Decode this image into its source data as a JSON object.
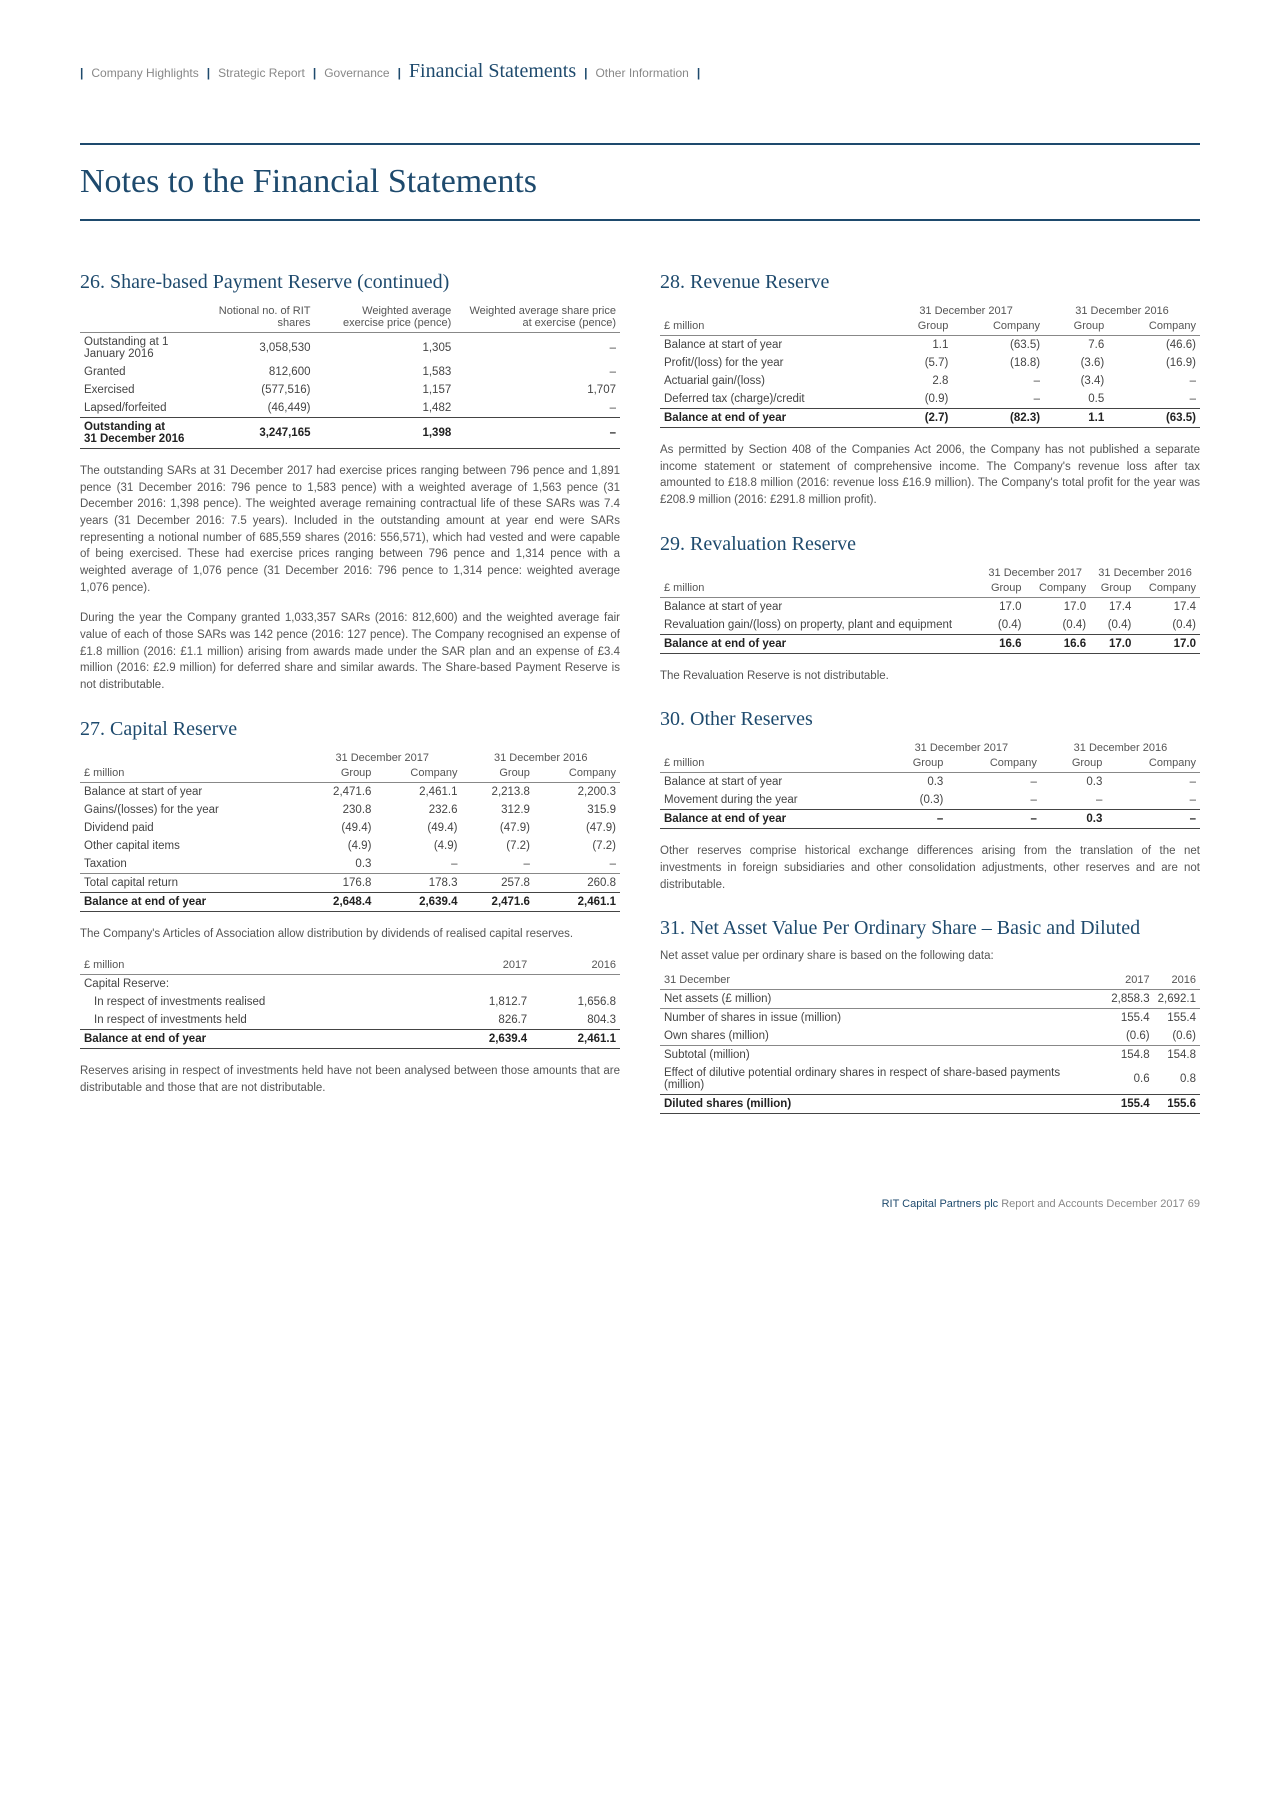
{
  "breadcrumb": {
    "items": [
      "Company Highlights",
      "Strategic Report",
      "Governance",
      "Financial Statements",
      "Other Information"
    ],
    "active_index": 3
  },
  "page_title": "Notes to the Financial Statements",
  "footer": {
    "company": "RIT Capital Partners plc",
    "label": "Report and Accounts December 2017",
    "page": "69"
  },
  "s26": {
    "title": "26. Share-based Payment Reserve (continued)",
    "headers": [
      "",
      "Notional no. of RIT shares",
      "Weighted average exercise price (pence)",
      "Weighted average share price at exercise (pence)"
    ],
    "rows": [
      [
        "Outstanding at 1 January 2016",
        "3,058,530",
        "1,305",
        "–"
      ],
      [
        "Granted",
        "812,600",
        "1,583",
        "–"
      ],
      [
        "Exercised",
        "(577,516)",
        "1,157",
        "1,707"
      ],
      [
        "Lapsed/forfeited",
        "(46,449)",
        "1,482",
        "–"
      ]
    ],
    "total": [
      "Outstanding at 31 December 2016",
      "3,247,165",
      "1,398",
      "–"
    ],
    "para1": "The outstanding SARs at 31 December 2017 had exercise prices ranging between 796 pence and 1,891 pence (31 December 2016: 796 pence to 1,583 pence) with a weighted average of 1,563 pence (31 December 2016: 1,398 pence). The weighted average remaining contractual life of these SARs was 7.4 years (31 December 2016: 7.5 years). Included in the outstanding amount at year end were SARs representing a notional number of 685,559 shares (2016: 556,571), which had vested and were capable of being exercised. These had exercise prices ranging between 796 pence and 1,314 pence with a weighted average of 1,076 pence (31 December 2016: 796 pence to 1,314 pence: weighted average 1,076 pence).",
    "para2": "During the year the Company granted 1,033,357 SARs (2016: 812,600) and the weighted average fair value of each of those SARs was 142 pence (2016: 127 pence). The Company recognised an expense of £1.8 million (2016: £1.1 million) arising from awards made under the SAR plan and an expense of £3.4 million (2016: £2.9 million) for deferred share and similar awards. The Share-based Payment Reserve is not distributable."
  },
  "s27": {
    "title": "27. Capital Reserve",
    "group_headers": [
      "",
      "31 December 2017",
      "31 December 2016"
    ],
    "sub_headers": [
      "£ million",
      "Group",
      "Company",
      "Group",
      "Company"
    ],
    "rows": [
      [
        "Balance at start of year",
        "2,471.6",
        "2,461.1",
        "2,213.8",
        "2,200.3"
      ],
      [
        "Gains/(losses) for the year",
        "230.8",
        "232.6",
        "312.9",
        "315.9"
      ],
      [
        "Dividend paid",
        "(49.4)",
        "(49.4)",
        "(47.9)",
        "(47.9)"
      ],
      [
        "Other capital items",
        "(4.9)",
        "(4.9)",
        "(7.2)",
        "(7.2)"
      ],
      [
        "Taxation",
        "0.3",
        "–",
        "–",
        "–"
      ]
    ],
    "subtotal": [
      "Total capital return",
      "176.8",
      "178.3",
      "257.8",
      "260.8"
    ],
    "total": [
      "Balance at end of year",
      "2,648.4",
      "2,639.4",
      "2,471.6",
      "2,461.1"
    ],
    "para1": "The Company's Articles of Association allow distribution by dividends of realised capital reserves.",
    "t2_headers": [
      "£ million",
      "2017",
      "2016"
    ],
    "t2_rows": [
      [
        "Capital Reserve:",
        "",
        ""
      ],
      [
        "In respect of investments realised",
        "1,812.7",
        "1,656.8"
      ],
      [
        "In respect of investments held",
        "826.7",
        "804.3"
      ]
    ],
    "t2_total": [
      "Balance at end of year",
      "2,639.4",
      "2,461.1"
    ],
    "para2": "Reserves arising in respect of investments held have not been analysed between those amounts that are distributable and those that are not distributable."
  },
  "s28": {
    "title": "28. Revenue Reserve",
    "group_headers": [
      "",
      "31 December 2017",
      "31 December 2016"
    ],
    "sub_headers": [
      "£ million",
      "Group",
      "Company",
      "Group",
      "Company"
    ],
    "rows": [
      [
        "Balance at start of year",
        "1.1",
        "(63.5)",
        "7.6",
        "(46.6)"
      ],
      [
        "Profit/(loss) for the year",
        "(5.7)",
        "(18.8)",
        "(3.6)",
        "(16.9)"
      ],
      [
        "Actuarial gain/(loss)",
        "2.8",
        "–",
        "(3.4)",
        "–"
      ],
      [
        "Deferred tax (charge)/credit",
        "(0.9)",
        "–",
        "0.5",
        "–"
      ]
    ],
    "total": [
      "Balance at end of year",
      "(2.7)",
      "(82.3)",
      "1.1",
      "(63.5)"
    ],
    "para1": "As permitted by Section 408 of the Companies Act 2006, the Company has not published a separate income statement or statement of comprehensive income. The Company's revenue loss after tax amounted to £18.8 million (2016: revenue loss £16.9 million). The Company's total profit for the year was £208.9 million (2016: £291.8 million profit)."
  },
  "s29": {
    "title": "29. Revaluation Reserve",
    "group_headers": [
      "",
      "31 December 2017",
      "31 December 2016"
    ],
    "sub_headers": [
      "£ million",
      "Group",
      "Company",
      "Group",
      "Company"
    ],
    "rows": [
      [
        "Balance at start of year",
        "17.0",
        "17.0",
        "17.4",
        "17.4"
      ],
      [
        "Revaluation gain/(loss) on property, plant and equipment",
        "(0.4)",
        "(0.4)",
        "(0.4)",
        "(0.4)"
      ]
    ],
    "total": [
      "Balance at end of year",
      "16.6",
      "16.6",
      "17.0",
      "17.0"
    ],
    "para1": "The Revaluation Reserve is not distributable."
  },
  "s30": {
    "title": "30. Other Reserves",
    "group_headers": [
      "",
      "31 December 2017",
      "31 December 2016"
    ],
    "sub_headers": [
      "£ million",
      "Group",
      "Company",
      "Group",
      "Company"
    ],
    "rows": [
      [
        "Balance at start of year",
        "0.3",
        "–",
        "0.3",
        "–"
      ],
      [
        "Movement during the year",
        "(0.3)",
        "–",
        "–",
        "–"
      ]
    ],
    "total": [
      "Balance at end of year",
      "–",
      "–",
      "0.3",
      "–"
    ],
    "para1": "Other reserves comprise historical exchange differences arising from the translation of the net investments in foreign subsidiaries and other consolidation adjustments, other reserves and are not distributable."
  },
  "s31": {
    "title": "31. Net Asset Value Per Ordinary Share – Basic and Diluted",
    "intro": "Net asset value per ordinary share is based on the following data:",
    "headers": [
      "31 December",
      "2017",
      "2016"
    ],
    "rows1": [
      [
        "Net assets (£ million)",
        "2,858.3",
        "2,692.1"
      ]
    ],
    "rows2": [
      [
        "Number of shares in issue (million)",
        "155.4",
        "155.4"
      ],
      [
        "Own shares (million)",
        "(0.6)",
        "(0.6)"
      ]
    ],
    "rows3": [
      [
        "Subtotal (million)",
        "154.8",
        "154.8"
      ],
      [
        "Effect of dilutive potential ordinary shares in respect of share-based payments (million)",
        "0.6",
        "0.8"
      ]
    ],
    "total": [
      "Diluted shares (million)",
      "155.4",
      "155.6"
    ]
  }
}
